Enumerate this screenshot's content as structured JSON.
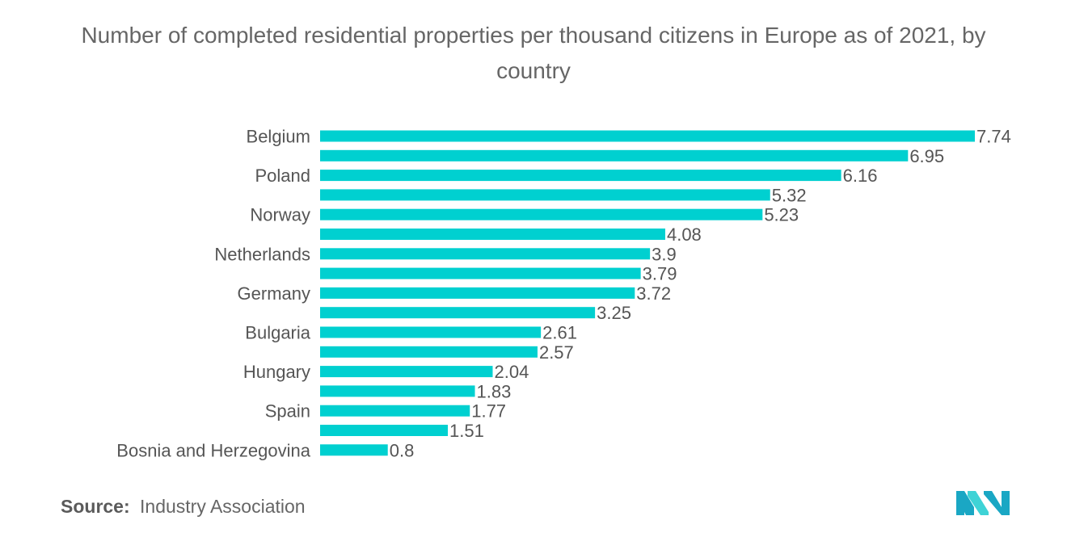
{
  "title": "Number of completed residential properties per thousand citizens in Europe as of 2021, by country",
  "source": {
    "label": "Source:",
    "value": "Industry Association"
  },
  "logo": {
    "icon": "mordor-logo-icon",
    "colors": [
      "#1aa7c4",
      "#3fd3d6"
    ]
  },
  "chart_data": {
    "type": "bar",
    "orientation": "horizontal",
    "bar_color": "#00d0d0",
    "title": "Number of completed residential properties per thousand citizens in Europe as of 2021, by country",
    "xlabel": "",
    "ylabel": "",
    "grid": false,
    "legend": "none",
    "categories": [
      "Belgium",
      "",
      "Poland",
      "",
      "Norway",
      "",
      "Netherlands",
      "",
      "Germany",
      "",
      "Bulgaria",
      "",
      "Hungary",
      "",
      "Spain",
      "",
      "Bosnia and Herzegovina"
    ],
    "values": [
      7.74,
      6.95,
      6.16,
      5.32,
      5.23,
      4.08,
      3.9,
      3.79,
      3.72,
      3.25,
      2.61,
      2.57,
      2.04,
      1.83,
      1.77,
      1.51,
      0.8
    ],
    "value_labels": [
      "7.74",
      "6.95",
      "6.16",
      "5.32",
      "5.23",
      "4.08",
      "3.9",
      "3.79",
      "3.72",
      "3.25",
      "2.61",
      "2.57",
      "2.04",
      "1.83",
      "1.77",
      "1.51",
      "0.8"
    ],
    "xlim": [
      0,
      7.74
    ]
  }
}
